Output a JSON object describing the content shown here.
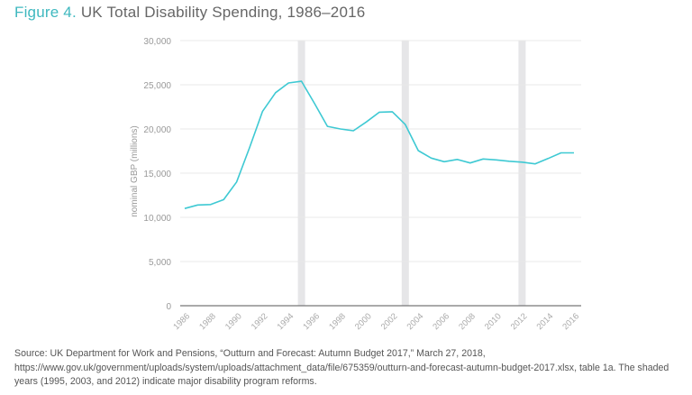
{
  "title": {
    "figure_label": "Figure 4.",
    "text": "UK Total Disability Spending, 1986–2016"
  },
  "colors": {
    "line": "#3ec9d3",
    "figure_label": "#3fb8bf",
    "shade": "#e6e6e8",
    "grid": "#e8e8e8",
    "axis": "#777777"
  },
  "chart_data": {
    "type": "line",
    "title": "UK Total Disability Spending, 1986–2016",
    "xlabel": "",
    "ylabel": "nominal GBP (millions)",
    "ylim": [
      0,
      30000
    ],
    "xlim": [
      1986,
      2016
    ],
    "yticks": [
      0,
      5000,
      10000,
      15000,
      20000,
      25000,
      30000
    ],
    "ytick_labels": [
      "0",
      "5,000",
      "10,000",
      "15,000",
      "20,000",
      "25,000",
      "30,000"
    ],
    "xticks": [
      1986,
      1988,
      1990,
      1992,
      1994,
      1996,
      1998,
      2000,
      2002,
      2004,
      2006,
      2008,
      2010,
      2012,
      2014,
      2016
    ],
    "xtick_labels": [
      "1986",
      "1988",
      "1990",
      "1992",
      "1994",
      "1996",
      "1998",
      "2000",
      "2002",
      "2004",
      "2006",
      "2008",
      "2010",
      "2012",
      "2014",
      "2016"
    ],
    "grid": true,
    "shaded_years": [
      1995,
      2003,
      2012
    ],
    "series": [
      {
        "name": "Total disability spending",
        "x": [
          1986,
          1987,
          1988,
          1989,
          1990,
          1991,
          1992,
          1993,
          1994,
          1995,
          1996,
          1997,
          1998,
          1999,
          2000,
          2001,
          2002,
          2003,
          2004,
          2005,
          2006,
          2007,
          2008,
          2009,
          2010,
          2011,
          2012,
          2013,
          2014,
          2015,
          2016
        ],
        "values": [
          11000,
          11400,
          11450,
          12000,
          14000,
          17900,
          22000,
          24100,
          25200,
          25400,
          22900,
          20300,
          20000,
          19800,
          20800,
          21900,
          21950,
          20500,
          17550,
          16700,
          16300,
          16550,
          16150,
          16600,
          16500,
          16350,
          16250,
          16050,
          16650,
          17300,
          17300
        ]
      }
    ]
  },
  "source": "Source: UK Department for Work and Pensions, “Outturn and Forecast: Autumn Budget 2017,” March 27, 2018, https://www.gov.uk/government/uploads/system/uploads/attachment_data/file/675359/outturn-and-forecast-autumn-budget-2017.xlsx, table 1a. The shaded years (1995, 2003, and 2012) indicate major disability program reforms."
}
